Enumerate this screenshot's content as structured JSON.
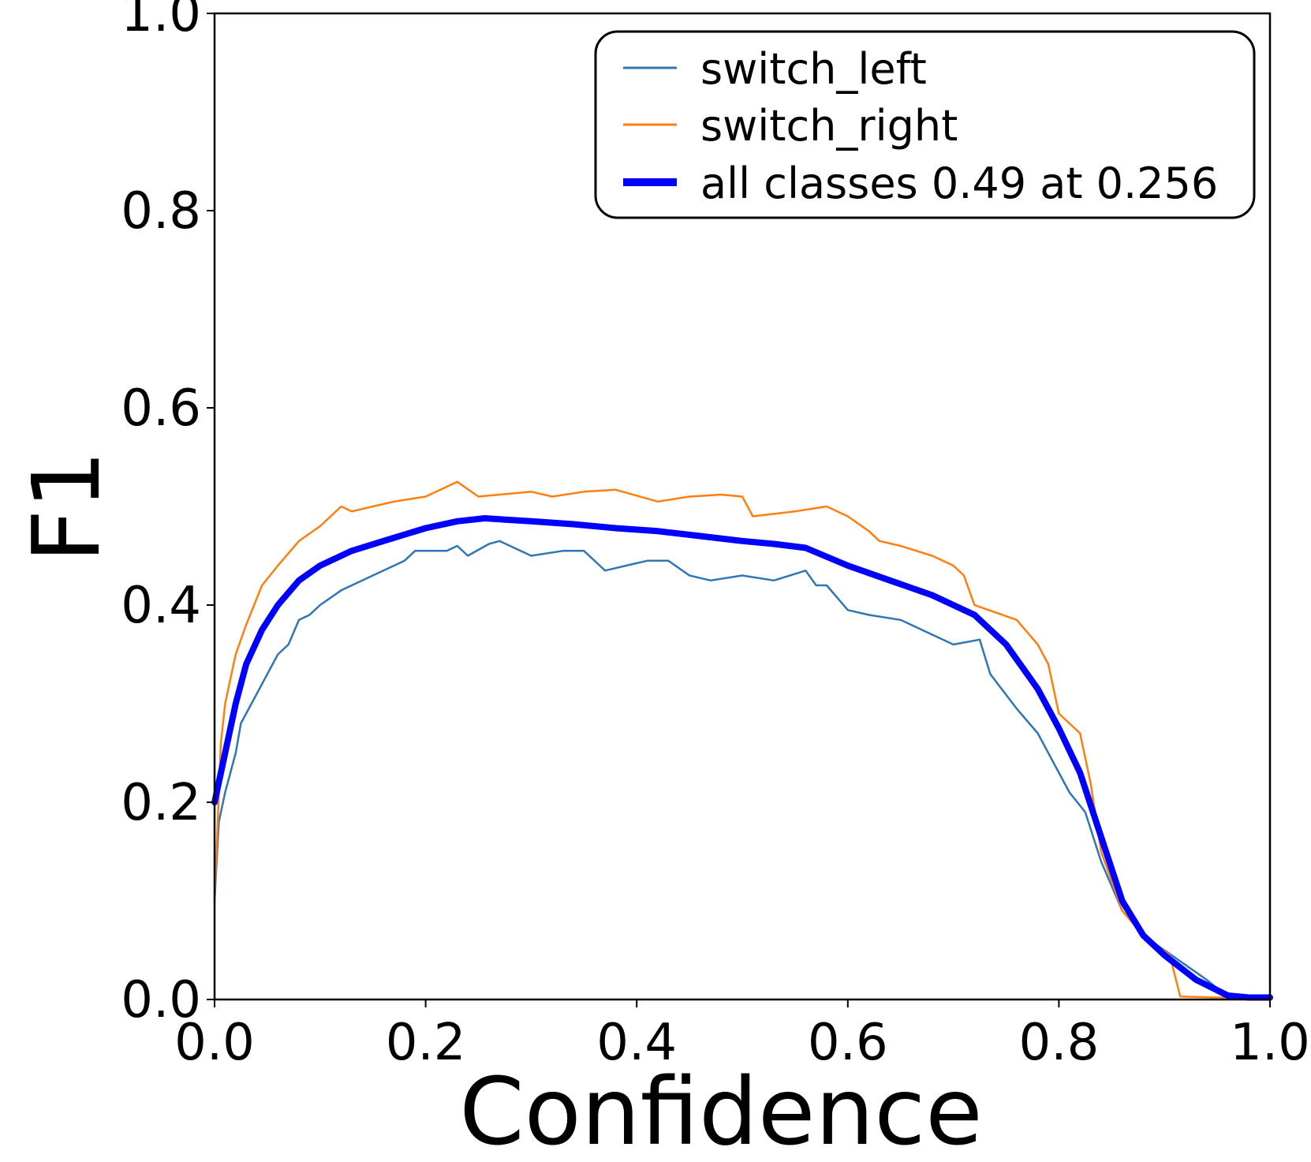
{
  "chart_data": {
    "type": "line",
    "xlabel": "Confidence",
    "ylabel": "F1",
    "xlim": [
      0.0,
      1.0
    ],
    "ylim": [
      0.0,
      1.0
    ],
    "xticks": [
      "0.0",
      "0.2",
      "0.4",
      "0.6",
      "0.8",
      "1.0"
    ],
    "yticks": [
      "0.0",
      "0.2",
      "0.4",
      "0.6",
      "0.8",
      "1.0"
    ],
    "grid": false,
    "legend_position": "top-right",
    "series": [
      {
        "name": "switch_left",
        "color": "#2f77b4",
        "points": [
          [
            0.0,
            0.1
          ],
          [
            0.004,
            0.18
          ],
          [
            0.01,
            0.21
          ],
          [
            0.02,
            0.25
          ],
          [
            0.025,
            0.28
          ],
          [
            0.035,
            0.3
          ],
          [
            0.05,
            0.33
          ],
          [
            0.06,
            0.35
          ],
          [
            0.07,
            0.36
          ],
          [
            0.08,
            0.385
          ],
          [
            0.09,
            0.39
          ],
          [
            0.1,
            0.4
          ],
          [
            0.12,
            0.415
          ],
          [
            0.14,
            0.425
          ],
          [
            0.16,
            0.435
          ],
          [
            0.18,
            0.445
          ],
          [
            0.19,
            0.455
          ],
          [
            0.22,
            0.455
          ],
          [
            0.23,
            0.46
          ],
          [
            0.24,
            0.45
          ],
          [
            0.26,
            0.462
          ],
          [
            0.27,
            0.465
          ],
          [
            0.29,
            0.455
          ],
          [
            0.3,
            0.45
          ],
          [
            0.33,
            0.455
          ],
          [
            0.35,
            0.455
          ],
          [
            0.37,
            0.435
          ],
          [
            0.39,
            0.44
          ],
          [
            0.41,
            0.445
          ],
          [
            0.43,
            0.445
          ],
          [
            0.45,
            0.43
          ],
          [
            0.47,
            0.425
          ],
          [
            0.5,
            0.43
          ],
          [
            0.53,
            0.425
          ],
          [
            0.56,
            0.435
          ],
          [
            0.57,
            0.42
          ],
          [
            0.58,
            0.42
          ],
          [
            0.6,
            0.395
          ],
          [
            0.62,
            0.39
          ],
          [
            0.65,
            0.385
          ],
          [
            0.68,
            0.37
          ],
          [
            0.7,
            0.36
          ],
          [
            0.725,
            0.365
          ],
          [
            0.735,
            0.33
          ],
          [
            0.76,
            0.295
          ],
          [
            0.78,
            0.27
          ],
          [
            0.8,
            0.23
          ],
          [
            0.81,
            0.21
          ],
          [
            0.825,
            0.19
          ],
          [
            0.84,
            0.14
          ],
          [
            0.86,
            0.09
          ],
          [
            0.88,
            0.065
          ],
          [
            0.9,
            0.05
          ],
          [
            0.94,
            0.02
          ],
          [
            0.96,
            0.003
          ],
          [
            0.98,
            0.002
          ],
          [
            1.0,
            0.002
          ]
        ]
      },
      {
        "name": "switch_right",
        "color": "#ff7f0e",
        "points": [
          [
            0.0,
            0.1
          ],
          [
            0.006,
            0.26
          ],
          [
            0.01,
            0.3
          ],
          [
            0.02,
            0.35
          ],
          [
            0.03,
            0.38
          ],
          [
            0.045,
            0.42
          ],
          [
            0.06,
            0.44
          ],
          [
            0.08,
            0.465
          ],
          [
            0.1,
            0.48
          ],
          [
            0.12,
            0.5
          ],
          [
            0.13,
            0.495
          ],
          [
            0.15,
            0.5
          ],
          [
            0.17,
            0.505
          ],
          [
            0.2,
            0.51
          ],
          [
            0.22,
            0.52
          ],
          [
            0.23,
            0.525
          ],
          [
            0.25,
            0.51
          ],
          [
            0.3,
            0.515
          ],
          [
            0.32,
            0.51
          ],
          [
            0.35,
            0.515
          ],
          [
            0.38,
            0.517
          ],
          [
            0.42,
            0.505
          ],
          [
            0.45,
            0.51
          ],
          [
            0.48,
            0.512
          ],
          [
            0.5,
            0.51
          ],
          [
            0.51,
            0.49
          ],
          [
            0.55,
            0.495
          ],
          [
            0.58,
            0.5
          ],
          [
            0.6,
            0.49
          ],
          [
            0.62,
            0.475
          ],
          [
            0.63,
            0.465
          ],
          [
            0.65,
            0.46
          ],
          [
            0.68,
            0.45
          ],
          [
            0.7,
            0.44
          ],
          [
            0.71,
            0.43
          ],
          [
            0.72,
            0.4
          ],
          [
            0.76,
            0.385
          ],
          [
            0.78,
            0.36
          ],
          [
            0.79,
            0.34
          ],
          [
            0.8,
            0.29
          ],
          [
            0.82,
            0.27
          ],
          [
            0.83,
            0.22
          ],
          [
            0.84,
            0.15
          ],
          [
            0.86,
            0.09
          ],
          [
            0.88,
            0.065
          ],
          [
            0.905,
            0.045
          ],
          [
            0.915,
            0.003
          ],
          [
            0.95,
            0.002
          ],
          [
            1.0,
            0.002
          ]
        ]
      },
      {
        "name": "all classes 0.49 at 0.256",
        "color": "#0000ff",
        "points": [
          [
            0.0,
            0.2
          ],
          [
            0.01,
            0.25
          ],
          [
            0.02,
            0.3
          ],
          [
            0.03,
            0.34
          ],
          [
            0.045,
            0.375
          ],
          [
            0.06,
            0.4
          ],
          [
            0.08,
            0.425
          ],
          [
            0.1,
            0.44
          ],
          [
            0.13,
            0.455
          ],
          [
            0.16,
            0.465
          ],
          [
            0.2,
            0.478
          ],
          [
            0.23,
            0.485
          ],
          [
            0.256,
            0.488
          ],
          [
            0.3,
            0.485
          ],
          [
            0.34,
            0.482
          ],
          [
            0.38,
            0.478
          ],
          [
            0.42,
            0.475
          ],
          [
            0.46,
            0.47
          ],
          [
            0.5,
            0.465
          ],
          [
            0.53,
            0.462
          ],
          [
            0.56,
            0.458
          ],
          [
            0.6,
            0.44
          ],
          [
            0.64,
            0.425
          ],
          [
            0.68,
            0.41
          ],
          [
            0.72,
            0.39
          ],
          [
            0.75,
            0.36
          ],
          [
            0.78,
            0.315
          ],
          [
            0.8,
            0.275
          ],
          [
            0.82,
            0.23
          ],
          [
            0.84,
            0.165
          ],
          [
            0.86,
            0.1
          ],
          [
            0.88,
            0.065
          ],
          [
            0.9,
            0.045
          ],
          [
            0.93,
            0.02
          ],
          [
            0.96,
            0.004
          ],
          [
            0.98,
            0.002
          ],
          [
            1.0,
            0.002
          ]
        ]
      }
    ]
  }
}
